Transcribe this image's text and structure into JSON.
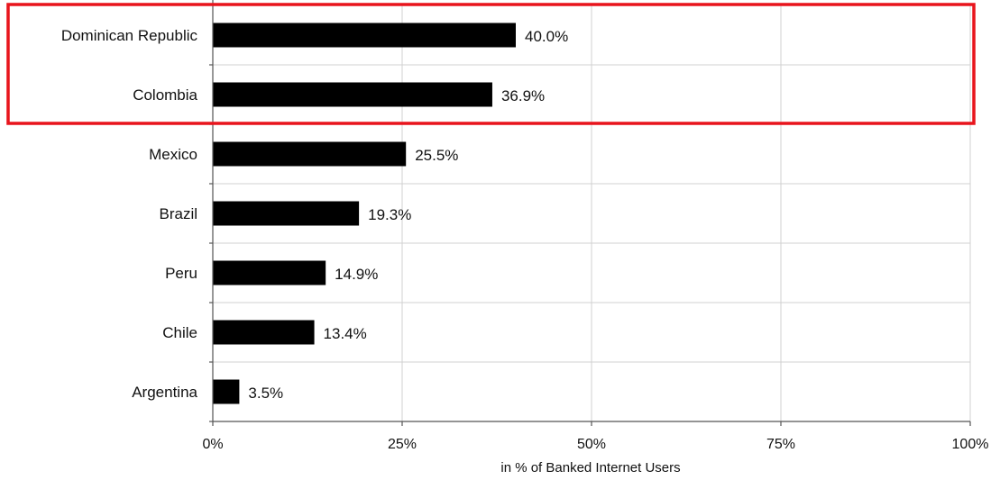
{
  "chart_data": {
    "type": "bar",
    "orientation": "horizontal",
    "categories": [
      "Dominican Republic",
      "Colombia",
      "Mexico",
      "Brazil",
      "Peru",
      "Chile",
      "Argentina"
    ],
    "values": [
      40.0,
      36.9,
      25.5,
      19.3,
      14.9,
      13.4,
      3.5
    ],
    "value_labels": [
      "40.0%",
      "36.9%",
      "25.5%",
      "19.3%",
      "14.9%",
      "13.4%",
      "3.5%"
    ],
    "xlabel": "in % of Banked Internet Users",
    "ylabel": "",
    "xlim": [
      0,
      100
    ],
    "x_ticks": [
      0,
      25,
      50,
      75,
      100
    ],
    "x_tick_labels": [
      "0%",
      "25%",
      "50%",
      "75%",
      "100%"
    ],
    "grid": true,
    "bar_color": "#000000",
    "highlighted_categories": [
      "Dominican Republic",
      "Colombia"
    ],
    "highlight_color": "#e8141c"
  }
}
